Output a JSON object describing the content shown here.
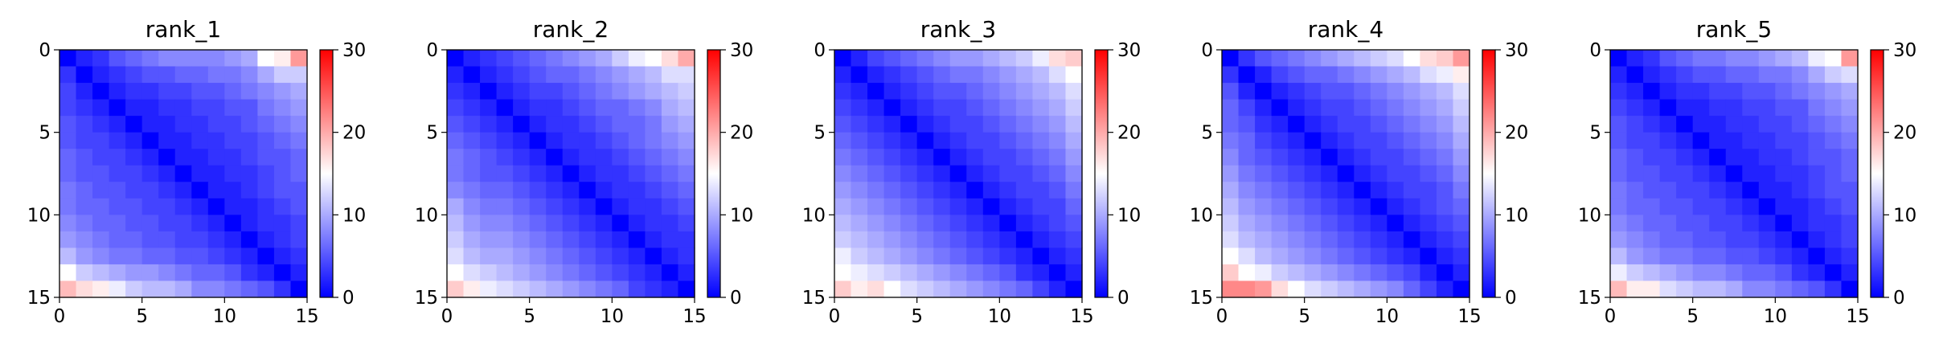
{
  "chart_data": [
    {
      "type": "heatmap",
      "title": "rank_1",
      "xlim": [
        0,
        15
      ],
      "ylim": [
        15,
        0
      ],
      "xticks": [
        "0",
        "5",
        "10",
        "15"
      ],
      "yticks": [
        "0",
        "5",
        "10",
        "15"
      ],
      "colorbar": {
        "range": [
          0,
          30
        ],
        "ticks": [
          "0",
          "10",
          "20",
          "30"
        ],
        "colormap": "bwr"
      },
      "matrix": [
        [
          0,
          2,
          3,
          5,
          6,
          7,
          8,
          8,
          8,
          8,
          9,
          10,
          15,
          16,
          21
        ],
        [
          3,
          0,
          2,
          3,
          4,
          5,
          5,
          6,
          6,
          7,
          7,
          8,
          10,
          12,
          12
        ],
        [
          4,
          2,
          0,
          2,
          3,
          3,
          4,
          4,
          5,
          5,
          6,
          7,
          8,
          9,
          10
        ],
        [
          4,
          3,
          2,
          0,
          2,
          2,
          3,
          3,
          4,
          4,
          5,
          5,
          7,
          8,
          9
        ],
        [
          5,
          4,
          3,
          2,
          0,
          2,
          2,
          3,
          3,
          4,
          4,
          5,
          6,
          7,
          8
        ],
        [
          5,
          4,
          4,
          3,
          2,
          0,
          2,
          2,
          3,
          3,
          4,
          4,
          5,
          6,
          7
        ],
        [
          6,
          5,
          4,
          4,
          3,
          2,
          0,
          2,
          2,
          3,
          3,
          4,
          5,
          5,
          6
        ],
        [
          6,
          5,
          5,
          4,
          4,
          3,
          2,
          0,
          2,
          2,
          3,
          3,
          4,
          5,
          6
        ],
        [
          7,
          6,
          5,
          5,
          4,
          4,
          3,
          2,
          0,
          2,
          2,
          3,
          4,
          5,
          5
        ],
        [
          7,
          6,
          6,
          5,
          5,
          4,
          4,
          3,
          2,
          0,
          2,
          2,
          3,
          4,
          5
        ],
        [
          8,
          7,
          6,
          6,
          5,
          5,
          4,
          4,
          3,
          2,
          0,
          2,
          3,
          3,
          4
        ],
        [
          9,
          8,
          7,
          6,
          6,
          5,
          5,
          4,
          4,
          3,
          2,
          0,
          2,
          3,
          4
        ],
        [
          11,
          9,
          8,
          7,
          7,
          6,
          6,
          5,
          5,
          4,
          3,
          2,
          0,
          2,
          3
        ],
        [
          15,
          12,
          11,
          10,
          9,
          9,
          8,
          7,
          6,
          6,
          5,
          3,
          2,
          0,
          2
        ],
        [
          19,
          17,
          16,
          14,
          12,
          11,
          11,
          10,
          8,
          8,
          7,
          6,
          5,
          3,
          0
        ]
      ]
    },
    {
      "type": "heatmap",
      "title": "rank_2",
      "xlim": [
        0,
        15
      ],
      "ylim": [
        15,
        0
      ],
      "xticks": [
        "0",
        "5",
        "10",
        "15"
      ],
      "yticks": [
        "0",
        "5",
        "10",
        "15"
      ],
      "colorbar": {
        "range": [
          0,
          30
        ],
        "ticks": [
          "0",
          "10",
          "20",
          "30"
        ],
        "colormap": "bwr"
      },
      "matrix": [
        [
          0,
          2,
          3,
          4,
          5,
          6,
          7,
          8,
          9,
          10,
          12,
          14,
          15,
          17,
          20
        ],
        [
          2,
          0,
          2,
          3,
          4,
          5,
          6,
          6,
          7,
          8,
          9,
          10,
          11,
          13,
          13
        ],
        [
          3,
          2,
          0,
          2,
          3,
          4,
          4,
          5,
          6,
          7,
          8,
          9,
          10,
          11,
          12
        ],
        [
          4,
          3,
          2,
          0,
          2,
          3,
          3,
          4,
          5,
          6,
          6,
          7,
          8,
          10,
          11
        ],
        [
          5,
          4,
          3,
          2,
          0,
          2,
          3,
          3,
          4,
          5,
          6,
          6,
          7,
          9,
          10
        ],
        [
          6,
          5,
          4,
          3,
          2,
          0,
          2,
          3,
          3,
          4,
          5,
          6,
          7,
          8,
          9
        ],
        [
          7,
          6,
          5,
          4,
          3,
          2,
          0,
          2,
          3,
          3,
          4,
          5,
          6,
          7,
          8
        ],
        [
          7,
          6,
          5,
          5,
          4,
          3,
          2,
          0,
          2,
          3,
          3,
          4,
          5,
          6,
          7
        ],
        [
          8,
          7,
          6,
          6,
          5,
          4,
          3,
          2,
          0,
          2,
          3,
          3,
          4,
          5,
          6
        ],
        [
          10,
          8,
          7,
          7,
          6,
          5,
          4,
          3,
          2,
          0,
          2,
          3,
          3,
          4,
          5
        ],
        [
          11,
          9,
          8,
          8,
          7,
          6,
          5,
          4,
          3,
          2,
          0,
          2,
          3,
          3,
          4
        ],
        [
          12,
          10,
          9,
          9,
          8,
          7,
          6,
          5,
          4,
          3,
          2,
          0,
          2,
          3,
          3
        ],
        [
          13,
          11,
          10,
          10,
          9,
          8,
          7,
          6,
          5,
          4,
          3,
          2,
          0,
          2,
          3
        ],
        [
          15,
          13,
          12,
          11,
          10,
          9,
          8,
          7,
          6,
          5,
          4,
          3,
          2,
          0,
          2
        ],
        [
          18,
          16,
          14,
          13,
          12,
          11,
          10,
          9,
          8,
          7,
          6,
          4,
          3,
          2,
          0
        ]
      ]
    },
    {
      "type": "heatmap",
      "title": "rank_3",
      "xlim": [
        0,
        15
      ],
      "ylim": [
        15,
        0
      ],
      "xticks": [
        "0",
        "5",
        "10",
        "15"
      ],
      "yticks": [
        "0",
        "5",
        "10",
        "15"
      ],
      "colorbar": {
        "range": [
          0,
          30
        ],
        "ticks": [
          "0",
          "10",
          "20",
          "30"
        ],
        "colormap": "bwr"
      },
      "matrix": [
        [
          0,
          2,
          4,
          5,
          6,
          7,
          8,
          9,
          9,
          10,
          11,
          12,
          14,
          17,
          18
        ],
        [
          2,
          0,
          2,
          3,
          4,
          5,
          6,
          7,
          7,
          8,
          9,
          10,
          11,
          13,
          15
        ],
        [
          3,
          2,
          0,
          2,
          3,
          4,
          5,
          5,
          6,
          7,
          8,
          9,
          10,
          11,
          13
        ],
        [
          4,
          3,
          2,
          0,
          2,
          3,
          4,
          4,
          5,
          6,
          7,
          8,
          9,
          10,
          12
        ],
        [
          5,
          4,
          3,
          2,
          0,
          2,
          3,
          4,
          4,
          5,
          6,
          7,
          8,
          9,
          11
        ],
        [
          6,
          5,
          4,
          3,
          2,
          0,
          2,
          3,
          4,
          4,
          5,
          6,
          7,
          8,
          10
        ],
        [
          7,
          6,
          5,
          4,
          3,
          2,
          0,
          2,
          3,
          4,
          4,
          5,
          6,
          7,
          9
        ],
        [
          8,
          7,
          6,
          5,
          4,
          3,
          2,
          0,
          2,
          3,
          4,
          4,
          5,
          6,
          8
        ],
        [
          9,
          8,
          7,
          6,
          5,
          4,
          3,
          2,
          0,
          2,
          3,
          4,
          4,
          5,
          7
        ],
        [
          10,
          9,
          8,
          7,
          6,
          5,
          4,
          3,
          2,
          0,
          2,
          3,
          4,
          4,
          6
        ],
        [
          11,
          10,
          9,
          8,
          7,
          6,
          5,
          4,
          3,
          2,
          0,
          2,
          3,
          4,
          5
        ],
        [
          12,
          11,
          10,
          9,
          8,
          7,
          6,
          5,
          4,
          3,
          2,
          0,
          2,
          3,
          4
        ],
        [
          14,
          12,
          11,
          10,
          9,
          8,
          7,
          6,
          5,
          4,
          3,
          2,
          0,
          2,
          3
        ],
        [
          15,
          14,
          13,
          12,
          11,
          10,
          9,
          8,
          7,
          6,
          5,
          3,
          2,
          0,
          2
        ],
        [
          18,
          16,
          17,
          15,
          13,
          12,
          11,
          10,
          9,
          8,
          7,
          6,
          4,
          2,
          0
        ]
      ]
    },
    {
      "type": "heatmap",
      "title": "rank_4",
      "xlim": [
        0,
        15
      ],
      "ylim": [
        15,
        0
      ],
      "xticks": [
        "0",
        "5",
        "10",
        "15"
      ],
      "yticks": [
        "0",
        "5",
        "10",
        "15"
      ],
      "colorbar": {
        "range": [
          0,
          30
        ],
        "ticks": [
          "0",
          "10",
          "20",
          "30"
        ],
        "colormap": "bwr"
      },
      "matrix": [
        [
          0,
          3,
          5,
          6,
          7,
          8,
          9,
          10,
          11,
          12,
          13,
          15,
          17,
          18,
          21
        ],
        [
          3,
          0,
          2,
          4,
          5,
          6,
          6,
          7,
          8,
          9,
          10,
          11,
          13,
          14,
          16
        ],
        [
          5,
          2,
          0,
          2,
          3,
          4,
          5,
          5,
          6,
          7,
          8,
          9,
          10,
          11,
          13
        ],
        [
          6,
          4,
          2,
          0,
          2,
          3,
          4,
          4,
          5,
          6,
          7,
          8,
          9,
          10,
          12
        ],
        [
          6,
          5,
          3,
          2,
          0,
          2,
          3,
          4,
          4,
          5,
          6,
          7,
          8,
          9,
          11
        ],
        [
          7,
          6,
          4,
          3,
          2,
          0,
          2,
          3,
          4,
          4,
          5,
          6,
          7,
          8,
          10
        ],
        [
          8,
          6,
          5,
          4,
          3,
          2,
          0,
          2,
          3,
          4,
          4,
          5,
          6,
          7,
          9
        ],
        [
          9,
          7,
          6,
          5,
          4,
          3,
          2,
          0,
          2,
          3,
          4,
          4,
          5,
          6,
          8
        ],
        [
          10,
          8,
          7,
          6,
          5,
          4,
          3,
          2,
          0,
          2,
          3,
          4,
          4,
          5,
          7
        ],
        [
          11,
          9,
          8,
          7,
          6,
          5,
          4,
          3,
          2,
          0,
          2,
          3,
          4,
          5,
          6
        ],
        [
          12,
          10,
          9,
          8,
          7,
          6,
          5,
          4,
          3,
          2,
          0,
          2,
          3,
          4,
          5
        ],
        [
          13,
          11,
          10,
          9,
          8,
          7,
          6,
          5,
          4,
          3,
          2,
          0,
          2,
          3,
          4
        ],
        [
          15,
          13,
          11,
          10,
          9,
          8,
          7,
          6,
          5,
          4,
          3,
          2,
          0,
          2,
          3
        ],
        [
          18,
          15,
          14,
          12,
          11,
          10,
          9,
          8,
          7,
          6,
          5,
          4,
          2,
          0,
          2
        ],
        [
          22,
          22,
          21,
          17,
          15,
          13,
          12,
          11,
          10,
          9,
          8,
          6,
          4,
          2,
          0
        ]
      ]
    },
    {
      "type": "heatmap",
      "title": "rank_5",
      "xlim": [
        0,
        15
      ],
      "ylim": [
        15,
        0
      ],
      "xticks": [
        "0",
        "5",
        "10",
        "15"
      ],
      "yticks": [
        "0",
        "5",
        "10",
        "15"
      ],
      "colorbar": {
        "range": [
          0,
          30
        ],
        "ticks": [
          "0",
          "10",
          "20",
          "30"
        ],
        "colormap": "bwr"
      },
      "matrix": [
        [
          0,
          2,
          3,
          5,
          6,
          7,
          7,
          8,
          8,
          9,
          10,
          11,
          14,
          15,
          21
        ],
        [
          2,
          0,
          2,
          3,
          4,
          5,
          5,
          6,
          6,
          7,
          7,
          8,
          10,
          12,
          13
        ],
        [
          3,
          2,
          0,
          2,
          3,
          3,
          4,
          4,
          5,
          5,
          6,
          7,
          8,
          9,
          10
        ],
        [
          4,
          3,
          2,
          0,
          2,
          2,
          3,
          3,
          4,
          4,
          5,
          5,
          7,
          8,
          9
        ],
        [
          5,
          4,
          3,
          2,
          0,
          2,
          2,
          3,
          3,
          4,
          4,
          5,
          6,
          7,
          8
        ],
        [
          5,
          4,
          4,
          3,
          2,
          0,
          2,
          2,
          3,
          3,
          4,
          4,
          5,
          6,
          7
        ],
        [
          6,
          5,
          4,
          4,
          3,
          2,
          0,
          2,
          2,
          3,
          3,
          4,
          5,
          5,
          6
        ],
        [
          6,
          5,
          5,
          4,
          4,
          3,
          2,
          0,
          2,
          2,
          3,
          3,
          4,
          5,
          6
        ],
        [
          7,
          6,
          5,
          5,
          4,
          4,
          3,
          2,
          0,
          2,
          2,
          3,
          4,
          5,
          5
        ],
        [
          7,
          6,
          6,
          5,
          5,
          4,
          4,
          3,
          2,
          0,
          2,
          2,
          3,
          4,
          5
        ],
        [
          8,
          7,
          6,
          6,
          5,
          5,
          4,
          4,
          3,
          2,
          0,
          2,
          3,
          3,
          4
        ],
        [
          9,
          8,
          7,
          6,
          6,
          5,
          5,
          4,
          4,
          3,
          2,
          0,
          2,
          3,
          4
        ],
        [
          11,
          9,
          8,
          7,
          7,
          6,
          6,
          5,
          5,
          4,
          3,
          2,
          0,
          2,
          3
        ],
        [
          14,
          12,
          11,
          10,
          9,
          8,
          8,
          7,
          6,
          6,
          5,
          3,
          2,
          0,
          2
        ],
        [
          19,
          16,
          16,
          13,
          12,
          11,
          11,
          10,
          8,
          8,
          7,
          6,
          5,
          3,
          0
        ]
      ]
    }
  ]
}
